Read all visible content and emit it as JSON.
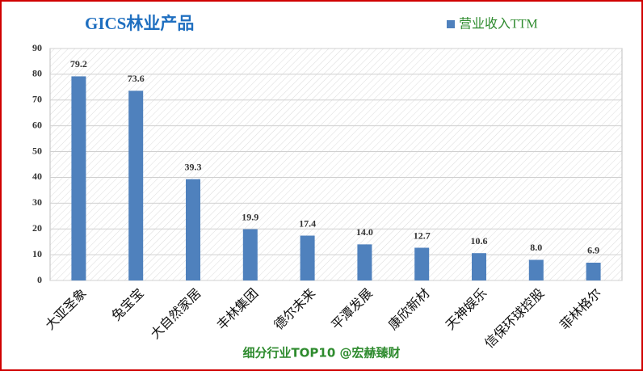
{
  "chart_data": {
    "type": "bar",
    "title": "GICS林业产品",
    "footer": "细分行业TOP10 @宏赫臻财",
    "categories": [
      "大亚圣象",
      "兔宝宝",
      "大自然家居",
      "丰林集团",
      "德尔未来",
      "平潭发展",
      "康欣新材",
      "天神娱乐",
      "信保环球控股",
      "菲林格尔"
    ],
    "series": [
      {
        "name": "营业收入TTM",
        "color": "#4f81bd",
        "values": [
          79.2,
          73.6,
          39.3,
          19.9,
          17.4,
          14.0,
          12.7,
          10.6,
          8.0,
          6.9
        ],
        "value_labels": [
          "79.2",
          "73.6",
          "39.3",
          "19.9",
          "17.4",
          "14.0",
          "12.7",
          "10.6",
          "8.0",
          "6.9"
        ]
      }
    ],
    "ylim": [
      0,
      90
    ],
    "yticks": [
      0,
      10,
      20,
      30,
      40,
      50,
      60,
      70,
      80,
      90
    ],
    "grid": true
  }
}
